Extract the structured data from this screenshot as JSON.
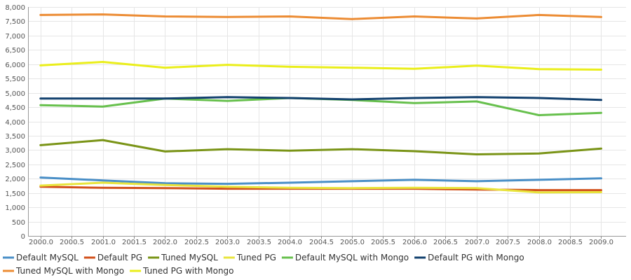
{
  "chart_data": {
    "type": "line",
    "title": "",
    "xlabel": "",
    "ylabel": "",
    "x": [
      2000,
      2001,
      2002,
      2003,
      2004,
      2005,
      2006,
      2007,
      2008,
      2009
    ],
    "xlim": [
      1999.8,
      2009.4
    ],
    "ylim": [
      0,
      8000
    ],
    "y_ticks": [
      0,
      500,
      1000,
      1500,
      2000,
      2500,
      3000,
      3500,
      4000,
      4500,
      5000,
      5500,
      6000,
      6500,
      7000,
      7500,
      8000
    ],
    "y_tick_labels": [
      "0",
      "500",
      "1,000",
      "1,500",
      "2,000",
      "2,500",
      "3,000",
      "3,500",
      "4,000",
      "4,500",
      "5,000",
      "5,500",
      "6,000",
      "6,500",
      "7,000",
      "7,500",
      "8,000"
    ],
    "x_ticks": [
      2000,
      2000.5,
      2001,
      2001.5,
      2002,
      2002.5,
      2003,
      2003.5,
      2004,
      2004.5,
      2005,
      2005.5,
      2006,
      2006.5,
      2007,
      2007.5,
      2008,
      2008.5,
      2009
    ],
    "x_tick_labels": [
      "2000.0",
      "2000.5",
      "2001.0",
      "2001.5",
      "2002.0",
      "2002.5",
      "2003.0",
      "2003.5",
      "2004.0",
      "2004.5",
      "2005.0",
      "2005.5",
      "2006.0",
      "2006.5",
      "2007.0",
      "2007.5",
      "2008.0",
      "2008.5",
      "2009.0"
    ],
    "grid": true,
    "legend_position": "bottom-left",
    "series": [
      {
        "name": "Default MySQL",
        "color": "#4a8fc7",
        "values": [
          2040,
          1940,
          1840,
          1820,
          1860,
          1910,
          1960,
          1910,
          1960,
          2010
        ]
      },
      {
        "name": "Default PG",
        "color": "#d2501b",
        "values": [
          1720,
          1680,
          1670,
          1650,
          1650,
          1650,
          1650,
          1620,
          1600,
          1600
        ]
      },
      {
        "name": "Tuned MySQL",
        "color": "#7a9417",
        "values": [
          3170,
          3350,
          2950,
          3030,
          2980,
          3030,
          2960,
          2850,
          2880,
          3050
        ]
      },
      {
        "name": "Tuned PG",
        "color": "#e8e43c",
        "values": [
          1760,
          1860,
          1780,
          1720,
          1680,
          1670,
          1680,
          1670,
          1520,
          1530
        ]
      },
      {
        "name": "Default MySQL with Mongo",
        "color": "#67c04d",
        "values": [
          4570,
          4520,
          4800,
          4720,
          4820,
          4750,
          4640,
          4700,
          4220,
          4300
        ]
      },
      {
        "name": "Default PG with Mongo",
        "color": "#12406e",
        "values": [
          4800,
          4800,
          4800,
          4850,
          4820,
          4770,
          4820,
          4850,
          4820,
          4750
        ]
      },
      {
        "name": "Tuned MySQL with Mongo",
        "color": "#ec8c34",
        "values": [
          7720,
          7740,
          7670,
          7650,
          7670,
          7580,
          7670,
          7600,
          7720,
          7650
        ]
      },
      {
        "name": "Tuned PG with Mongo",
        "color": "#eaee1b",
        "values": [
          5960,
          6080,
          5880,
          5980,
          5910,
          5880,
          5840,
          5950,
          5830,
          5810
        ]
      }
    ]
  }
}
